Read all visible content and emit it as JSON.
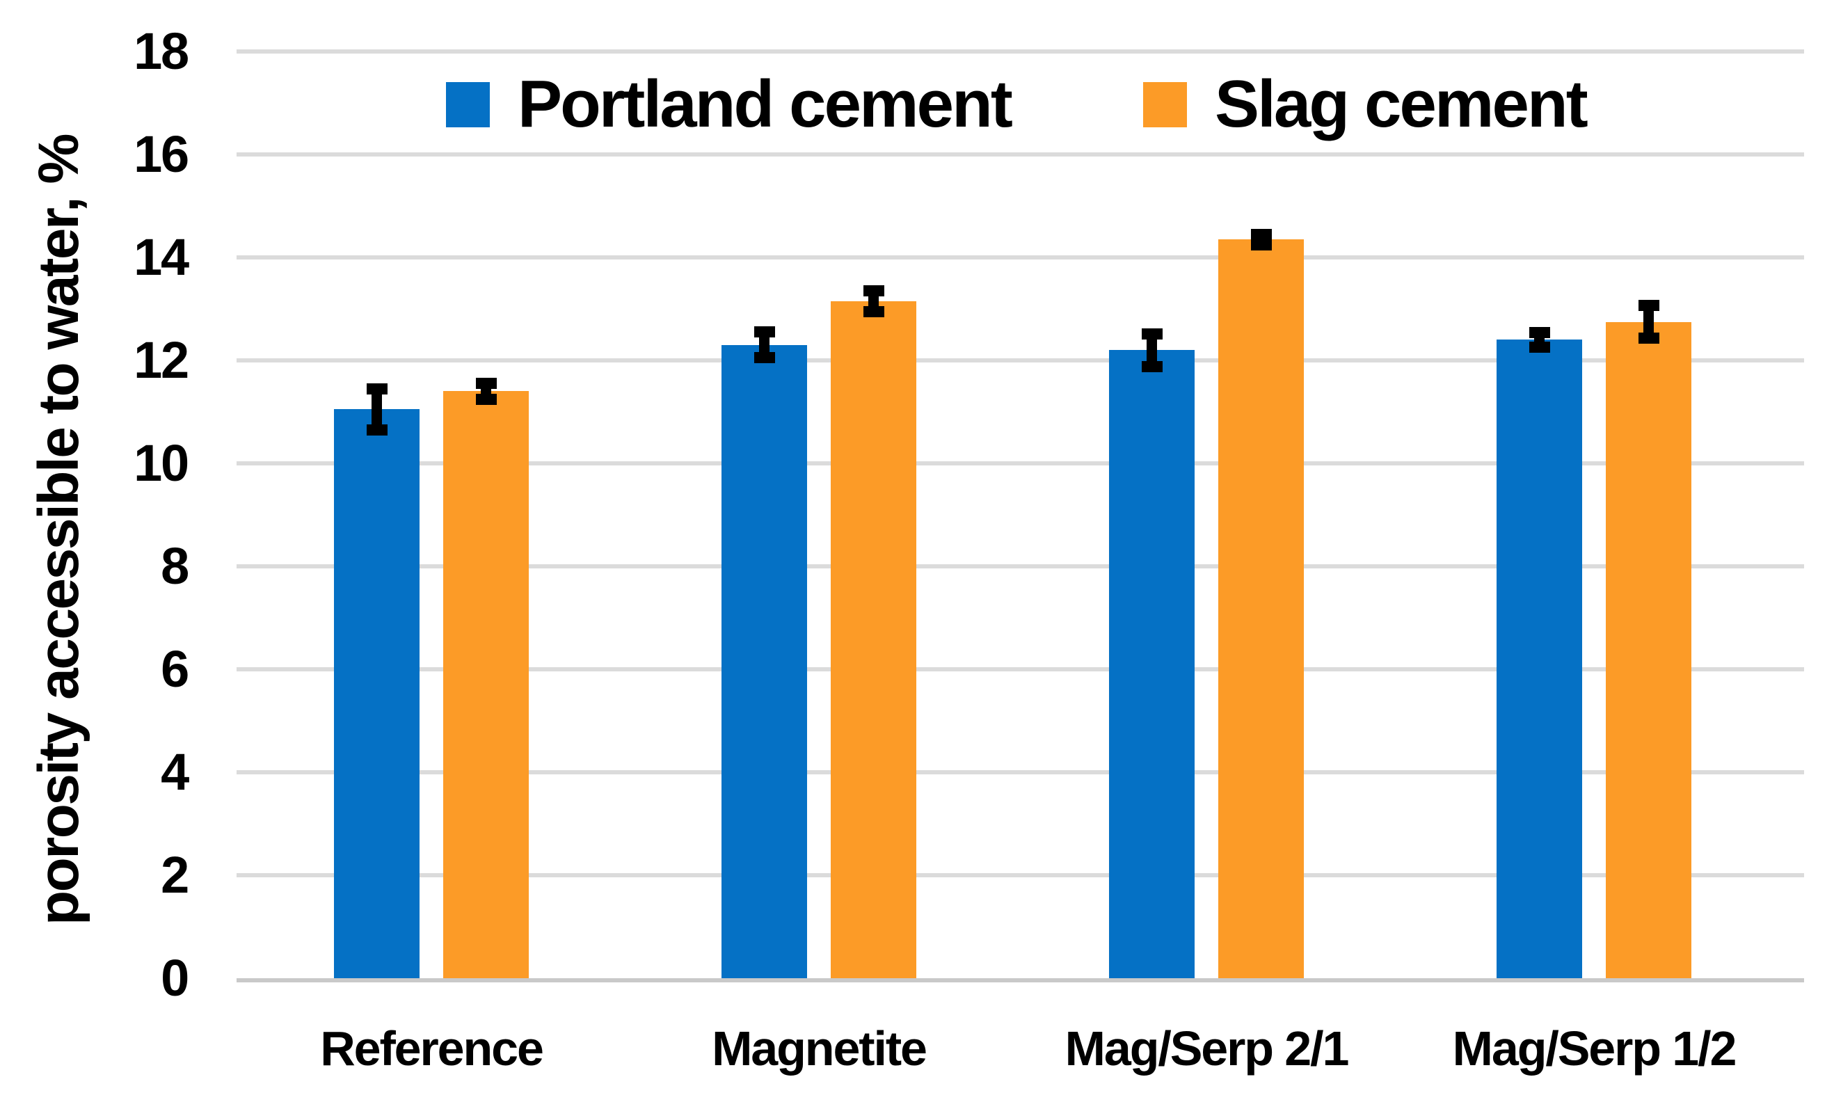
{
  "figure": {
    "background": "#FFFFFF",
    "text_color": "#000000"
  },
  "style": {
    "gridline_color": "#DBDBDB",
    "axis_line_color": "#C9C9C9",
    "error_bar_color": "#000000"
  },
  "chart_data": {
    "type": "bar",
    "title": "",
    "xlabel": "",
    "ylabel": "porosity accessible to water, %",
    "ylim": [
      0,
      18
    ],
    "yticks": [
      0,
      2,
      4,
      6,
      8,
      10,
      12,
      14,
      16,
      18
    ],
    "grid": true,
    "legend_position": "top-inside",
    "categories": [
      "Reference",
      "Magnetite",
      "Mag/Serp 2/1",
      "Mag/Serp 1/2"
    ],
    "series": [
      {
        "name": "Portland cement",
        "color": "#0571C5",
        "values": [
          11.05,
          12.3,
          12.2,
          12.4
        ],
        "errors": [
          0.4,
          0.25,
          0.32,
          0.14
        ]
      },
      {
        "name": "Slag cement",
        "color": "#FC9B27",
        "values": [
          11.4,
          13.15,
          14.35,
          12.75
        ],
        "errors": [
          0.15,
          0.2,
          0.1,
          0.32
        ]
      }
    ]
  }
}
